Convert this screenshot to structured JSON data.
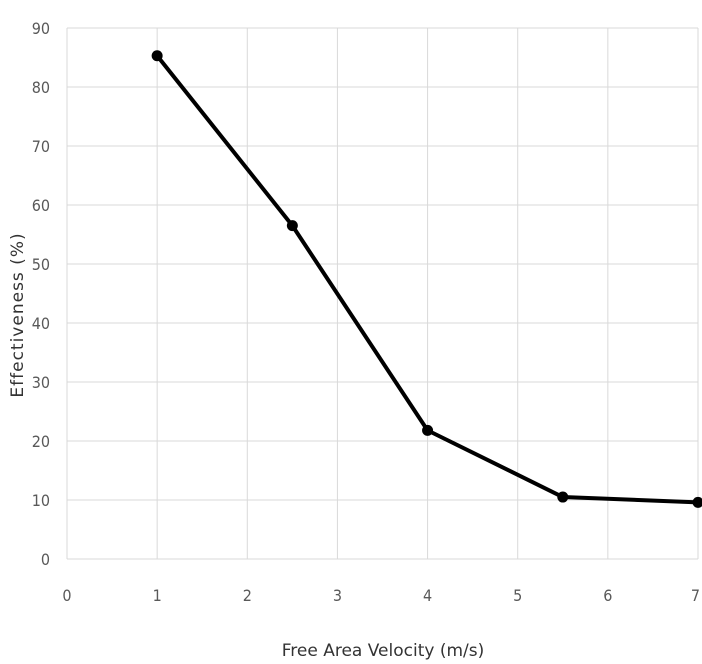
{
  "chart_data": {
    "type": "line",
    "xlabel": "Free Area Velocity (m/s)",
    "ylabel": "Effectiveness (%)",
    "xlim": [
      0,
      7
    ],
    "ylim": [
      0,
      90
    ],
    "xticks": [
      0,
      1,
      2,
      3,
      4,
      5,
      6,
      7
    ],
    "yticks": [
      0,
      10,
      20,
      30,
      40,
      50,
      60,
      70,
      80,
      90
    ],
    "grid": true,
    "series": [
      {
        "x": [
          1,
          2.5,
          4,
          5.5,
          7
        ],
        "y": [
          85.3,
          56.5,
          21.8,
          10.5,
          9.6
        ]
      }
    ],
    "colors": {
      "line": "#000000",
      "grid": "#d9d9d9",
      "tick_text": "#595959"
    }
  }
}
